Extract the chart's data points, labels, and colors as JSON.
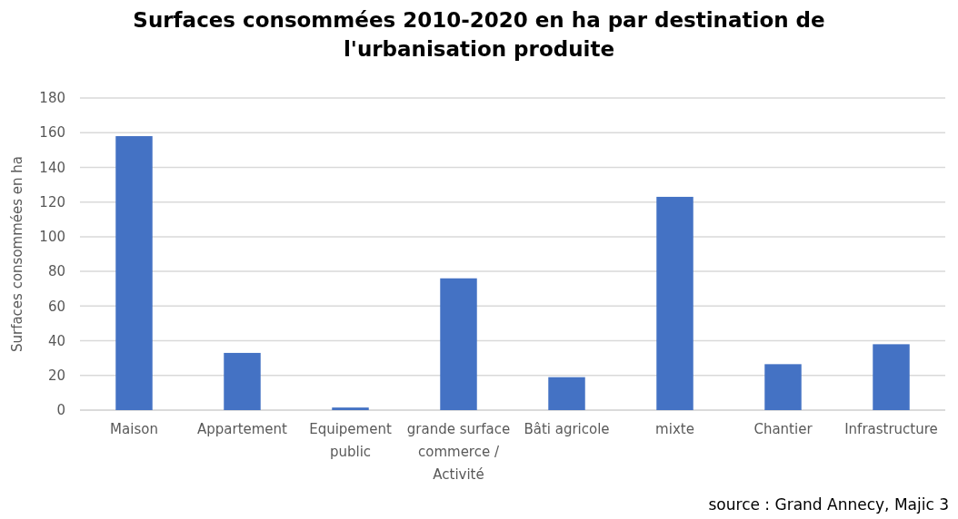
{
  "chart_data": {
    "type": "bar",
    "title": "Surfaces consommées 2010-2020 en ha par destination de l'urbanisation produite",
    "ylabel": "Surfaces consommées en ha",
    "categories": [
      "Maison",
      "Appartement",
      "Equipement public",
      "grande surface commerce / Activité",
      "Bâti agricole",
      "mixte",
      "Chantier",
      "Infrastructure"
    ],
    "values": [
      158,
      33,
      1.5,
      76,
      19,
      123,
      26.5,
      38
    ],
    "color": "#4472c4",
    "ylim": [
      0,
      180
    ],
    "yticks": [
      0,
      20,
      40,
      60,
      80,
      100,
      120,
      140,
      160,
      180
    ],
    "grid": "y",
    "annotations": [
      "source : Grand Annecy, Majic 3"
    ]
  }
}
